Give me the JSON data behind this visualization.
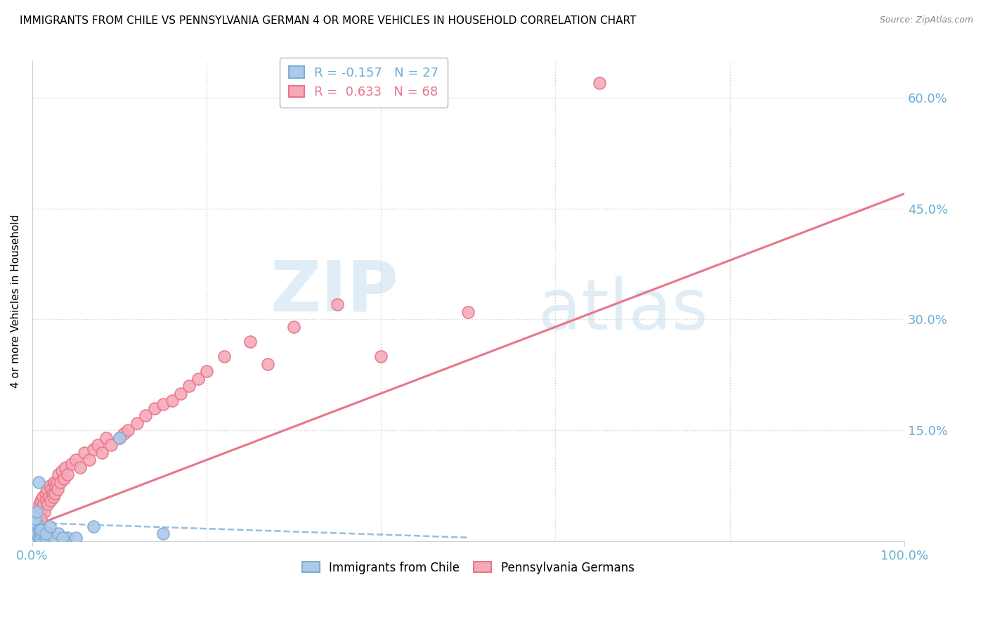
{
  "title": "IMMIGRANTS FROM CHILE VS PENNSYLVANIA GERMAN 4 OR MORE VEHICLES IN HOUSEHOLD CORRELATION CHART",
  "source": "Source: ZipAtlas.com",
  "ylabel": "4 or more Vehicles in Household",
  "xlim": [
    0,
    100
  ],
  "ylim": [
    0,
    65
  ],
  "ytick_positions": [
    15,
    30,
    45,
    60
  ],
  "ytick_labels": [
    "15.0%",
    "30.0%",
    "45.0%",
    "60.0%"
  ],
  "xtick_positions": [
    0,
    100
  ],
  "xtick_labels": [
    "0.0%",
    "100.0%"
  ],
  "legend_r1": "R = -0.157",
  "legend_n1": "N = 27",
  "legend_r2": "R =  0.633",
  "legend_n2": "N = 68",
  "color_blue_fill": "#aec9e8",
  "color_blue_edge": "#7bafd4",
  "color_pink_fill": "#f5aab8",
  "color_pink_edge": "#e8758a",
  "color_blue_line": "#7bafd4",
  "color_pink_line": "#e8758a",
  "color_axis_text": "#6baed6",
  "grid_color": "#d0d0d0",
  "blue_x": [
    0.2,
    0.3,
    0.4,
    0.5,
    0.6,
    0.7,
    0.8,
    0.9,
    1.0,
    1.2,
    1.5,
    1.8,
    2.0,
    2.5,
    3.0,
    4.0,
    5.0,
    7.0,
    10.0,
    15.0,
    0.3,
    0.5,
    0.7,
    1.0,
    1.5,
    2.0,
    3.5
  ],
  "blue_y": [
    2.0,
    1.5,
    1.0,
    2.5,
    1.0,
    0.5,
    1.5,
    0.5,
    1.0,
    1.5,
    0.5,
    1.0,
    1.0,
    0.5,
    1.0,
    0.5,
    0.5,
    2.0,
    14.0,
    1.0,
    3.0,
    4.0,
    8.0,
    1.5,
    1.0,
    2.0,
    0.5
  ],
  "pink_x": [
    0.2,
    0.3,
    0.4,
    0.5,
    0.6,
    0.7,
    0.8,
    0.9,
    1.0,
    1.1,
    1.2,
    1.3,
    1.4,
    1.5,
    1.6,
    1.7,
    1.8,
    1.9,
    2.0,
    2.1,
    2.2,
    2.3,
    2.4,
    2.5,
    2.6,
    2.7,
    2.8,
    2.9,
    3.0,
    3.2,
    3.4,
    3.6,
    3.8,
    4.0,
    4.5,
    5.0,
    5.5,
    6.0,
    6.5,
    7.0,
    7.5,
    8.0,
    8.5,
    9.0,
    10.0,
    10.5,
    11.0,
    12.0,
    13.0,
    14.0,
    15.0,
    16.0,
    17.0,
    18.0,
    19.0,
    20.0,
    22.0,
    25.0,
    27.0,
    30.0,
    35.0,
    40.0,
    50.0,
    65.0,
    0.4,
    0.6,
    0.8,
    1.0
  ],
  "pink_y": [
    2.0,
    3.0,
    2.5,
    4.0,
    3.5,
    3.0,
    5.0,
    4.0,
    5.5,
    4.5,
    6.0,
    5.0,
    4.0,
    6.5,
    5.5,
    7.0,
    5.0,
    6.0,
    7.5,
    5.5,
    7.0,
    6.5,
    6.0,
    8.0,
    6.5,
    7.5,
    8.0,
    7.0,
    9.0,
    8.0,
    9.5,
    8.5,
    10.0,
    9.0,
    10.5,
    11.0,
    10.0,
    12.0,
    11.0,
    12.5,
    13.0,
    12.0,
    14.0,
    13.0,
    14.0,
    14.5,
    15.0,
    16.0,
    17.0,
    18.0,
    18.5,
    19.0,
    20.0,
    21.0,
    22.0,
    23.0,
    25.0,
    27.0,
    24.0,
    29.0,
    32.0,
    25.0,
    31.0,
    62.0,
    1.5,
    2.5,
    2.0,
    3.0
  ],
  "blue_line_x0": 0,
  "blue_line_x1": 50,
  "blue_line_y0": 2.5,
  "blue_line_y1": 0.5,
  "pink_line_x0": 0,
  "pink_line_x1": 100,
  "pink_line_y0": 2.0,
  "pink_line_y1": 47.0
}
